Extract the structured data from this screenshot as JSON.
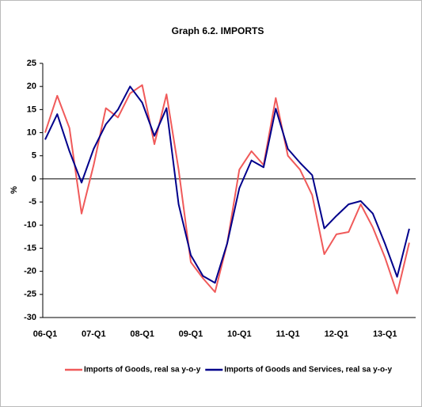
{
  "chart_data": {
    "type": "line",
    "title": "Graph 6.2. IMPORTS",
    "y_label": "%",
    "categories": [
      "06-Q1",
      null,
      null,
      null,
      "07-Q1",
      null,
      null,
      null,
      "08-Q1",
      null,
      null,
      null,
      "09-Q1",
      null,
      null,
      null,
      "10-Q1",
      null,
      null,
      null,
      "11-Q1",
      null,
      null,
      null,
      "12-Q1",
      null,
      null,
      null,
      "13-Q1",
      null,
      null
    ],
    "series": [
      {
        "name": "Imports of Goods, real sa y-o-y",
        "color": "#f05a5a",
        "values": [
          10,
          18,
          11,
          -7.5,
          3,
          15.3,
          13.3,
          18.5,
          20.3,
          7.5,
          18.3,
          2,
          -18,
          -21.5,
          -24.5,
          -14,
          2,
          6,
          3,
          17.5,
          5,
          2,
          -3.5,
          -16.3,
          -12,
          -11.5,
          -5.5,
          -10.5,
          -17,
          -24.8,
          -13.8
        ]
      },
      {
        "name": "Imports of Goods and Services, real sa y-o-y",
        "color": "#00008b",
        "values": [
          8.5,
          14,
          6,
          -0.8,
          6.5,
          11.8,
          15,
          20,
          16.5,
          9.3,
          15.3,
          -5.5,
          -16.5,
          -21,
          -22.5,
          -14,
          -2,
          4,
          2.5,
          15.2,
          6.5,
          3.5,
          0.8,
          -10.7,
          -8,
          -5.5,
          -4.8,
          -7.5,
          -14,
          -21.2,
          -10.8
        ]
      }
    ],
    "ylim": [
      -30,
      25
    ],
    "yticks": [
      -30,
      -25,
      -20,
      -15,
      -10,
      -5,
      0,
      5,
      10,
      15,
      20,
      25
    ],
    "legend": "bottom"
  }
}
